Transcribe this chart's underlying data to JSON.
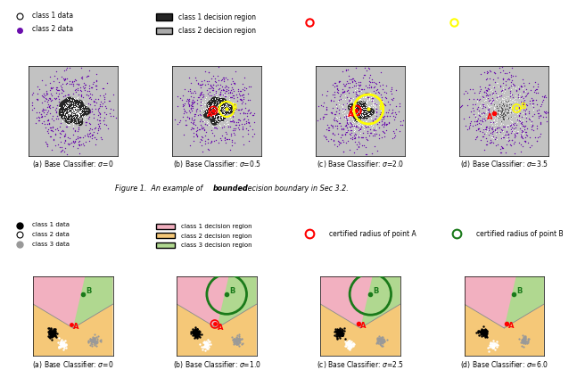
{
  "fig_width": 6.4,
  "fig_height": 4.06,
  "top_row_labels": [
    "(a) Base Classifier: σ=0",
    "(b) Base Classifier: σ=0.5",
    "(c) Base Classifier: σ=2.0",
    "(d) Base Classifier: σ=3.5"
  ],
  "bottom_row_labels": [
    "(a) Base Classifier: σ=0",
    "(b) Base Classifier: σ=1.0",
    "(c) Base Classifier: σ=2.5",
    "(d) Base Classifier: σ=6.0"
  ],
  "figure_caption_plain": "Figure 1.  An example of ",
  "figure_caption_bold": "bounded",
  "figure_caption_rest": " decision boundary in Sec 3.2.",
  "top_leg3_bg": "#6b7345",
  "bot_leg3_bg": "#f2b8c6",
  "panel_bg": "#c2c2c2",
  "class1_dark": "#252525",
  "class2_purple": "#6a0dad",
  "bot_pink": "#f2b0c0",
  "bot_orange": "#f5c878",
  "bot_green": "#b8dcA0",
  "bot_green2": "#1a7a1a"
}
